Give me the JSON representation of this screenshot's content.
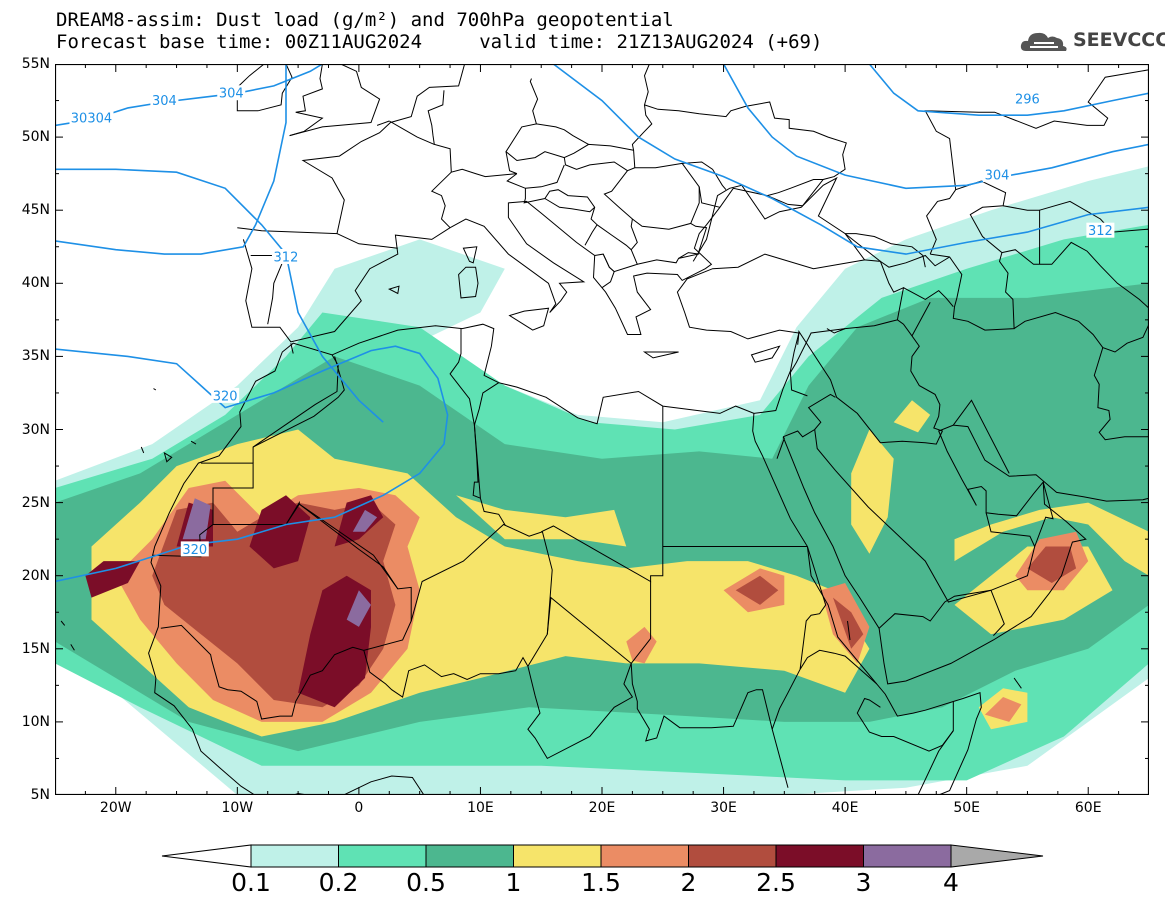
{
  "header": {
    "line1": "DREAM8-assim: Dust load (g/m²) and 700hPa geopotential",
    "line2": "Forecast base time: 00Z11AUG2024     valid time: 21Z13AUG2024 (+69)",
    "logo": "SEEVCCC",
    "logo_icon": "cloud-icon"
  },
  "map": {
    "lon_range": [
      -25,
      65
    ],
    "lat_range": [
      5,
      55
    ],
    "lat_ticks": [
      "55N",
      "50N",
      "45N",
      "40N",
      "35N",
      "30N",
      "25N",
      "20N",
      "15N",
      "10N",
      "5N"
    ],
    "lon_ticks": [
      "20W",
      "10W",
      "0",
      "10E",
      "20E",
      "30E",
      "40E",
      "50E",
      "60E"
    ],
    "contour_labels": [
      {
        "text": "30304",
        "lon": -22,
        "lat": 51.3
      },
      {
        "text": "304",
        "lon": -16,
        "lat": 52.5
      },
      {
        "text": "304",
        "lon": -10.5,
        "lat": 53
      },
      {
        "text": "312",
        "lon": -6,
        "lat": 41.8
      },
      {
        "text": "320",
        "lon": -11,
        "lat": 32.3
      },
      {
        "text": "320",
        "lon": -13.5,
        "lat": 21.8
      },
      {
        "text": "296",
        "lon": 55,
        "lat": 52.6
      },
      {
        "text": "304",
        "lon": 52.5,
        "lat": 47.4
      },
      {
        "text": "312",
        "lon": 61,
        "lat": 43.6
      }
    ],
    "colors": {
      "c1": "#bff1e8",
      "c2": "#5fe2b4",
      "c3": "#4cb78f",
      "c4": "#f6e46a",
      "c5": "#eb8c64",
      "c6": "#b14d3e",
      "c7": "#7b0d28",
      "c8": "#8b6b9f",
      "geopotential": "#1e90e6",
      "coast": "#000000"
    }
  },
  "colorbar": {
    "labels": [
      "0.1",
      "0.2",
      "0.5",
      "1",
      "1.5",
      "2",
      "2.5",
      "3",
      "4"
    ],
    "colors": [
      "#bff1e8",
      "#5fe2b4",
      "#4cb78f",
      "#f6e46a",
      "#eb8c64",
      "#b14d3e",
      "#7b0d28",
      "#8b6b9f"
    ],
    "over_color": "#a9a9a9",
    "under_color": "#ffffff"
  }
}
